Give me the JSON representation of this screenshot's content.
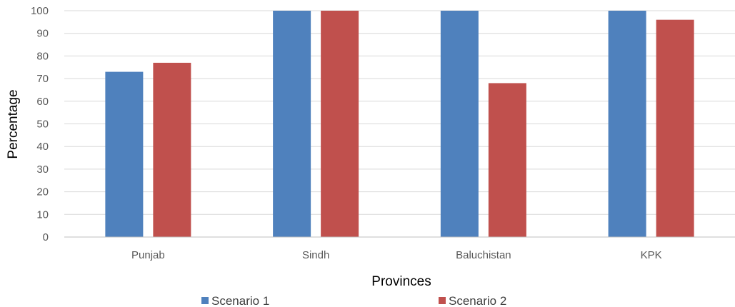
{
  "chart_data": {
    "type": "bar",
    "title": "",
    "xlabel": "Provinces",
    "ylabel": "Percentage",
    "categories": [
      "Punjab",
      "Sindh",
      "Baluchistan",
      "KPK"
    ],
    "series": [
      {
        "name": "Scenario 1",
        "values": [
          73,
          100,
          100,
          100
        ],
        "color": "#4F81BD"
      },
      {
        "name": "Scenario 2",
        "values": [
          77,
          100,
          68,
          96
        ],
        "color": "#C0504D"
      }
    ],
    "ylim": [
      0,
      100
    ],
    "yticks": [
      0,
      10,
      20,
      30,
      40,
      50,
      60,
      70,
      80,
      90,
      100
    ],
    "grid": true,
    "legend_position": "bottom"
  }
}
